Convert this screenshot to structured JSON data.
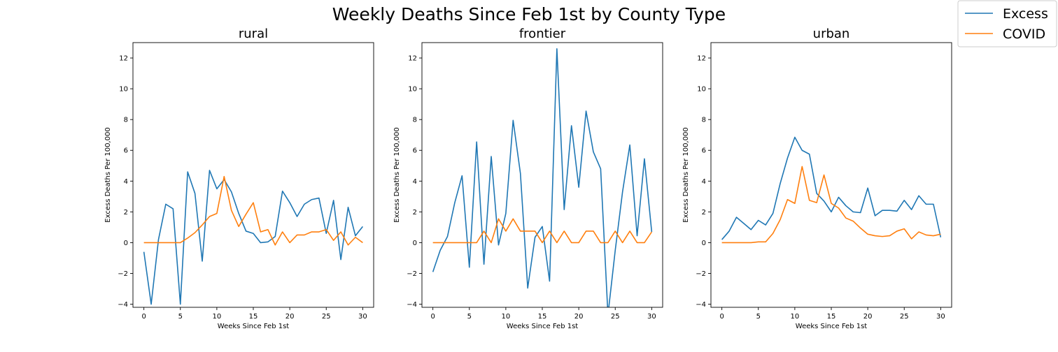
{
  "title": "Weekly Deaths Since Feb 1st by County Type",
  "legend": {
    "placement": "top-right",
    "entries": [
      "Excess",
      "COVID"
    ]
  },
  "colors": {
    "Excess": "#1f77b4",
    "COVID": "#ff7f0e"
  },
  "chart_data": [
    {
      "type": "line",
      "title": "rural",
      "xlabel": "Weeks Since Feb 1st",
      "ylabel": "Excess Deaths Per 100,000",
      "xlim": [
        -1.5,
        31.5
      ],
      "ylim": [
        -4.2,
        13
      ],
      "xticks": [
        "0",
        "5",
        "10",
        "15",
        "20",
        "25",
        "30"
      ],
      "yticks": [
        "−4",
        "−2",
        "0",
        "2",
        "4",
        "6",
        "8",
        "10",
        "12"
      ],
      "x": [
        0,
        1,
        2,
        3,
        4,
        5,
        6,
        7,
        8,
        9,
        10,
        11,
        12,
        13,
        14,
        15,
        16,
        17,
        18,
        19,
        20,
        21,
        22,
        23,
        24,
        25,
        26,
        27,
        28,
        29,
        30
      ],
      "series": [
        {
          "name": "Excess",
          "values": [
            -0.6,
            -4.0,
            0.2,
            2.5,
            2.2,
            -4.0,
            4.6,
            3.2,
            -1.2,
            4.7,
            3.5,
            4.1,
            3.3,
            1.9,
            0.75,
            0.6,
            0.0,
            0.05,
            0.4,
            3.35,
            2.6,
            1.7,
            2.5,
            2.8,
            2.9,
            0.6,
            2.75,
            -1.1,
            2.3,
            0.45,
            1.05
          ]
        },
        {
          "name": "COVID",
          "values": [
            0,
            0,
            0,
            0,
            0,
            0,
            0.3,
            0.65,
            1.15,
            1.7,
            1.9,
            4.3,
            2.1,
            1.05,
            1.85,
            2.6,
            0.7,
            0.85,
            -0.15,
            0.7,
            0.0,
            0.5,
            0.5,
            0.7,
            0.7,
            0.85,
            0.15,
            0.7,
            -0.15,
            0.35,
            0.0
          ]
        }
      ]
    },
    {
      "type": "line",
      "title": "frontier",
      "xlabel": "Weeks Since Feb 1st",
      "ylabel": "Excess Deaths Per 100,000",
      "xlim": [
        -1.5,
        31.5
      ],
      "ylim": [
        -4.2,
        13
      ],
      "xticks": [
        "0",
        "5",
        "10",
        "15",
        "20",
        "25",
        "30"
      ],
      "yticks": [
        "−4",
        "−2",
        "0",
        "2",
        "4",
        "6",
        "8",
        "10",
        "12"
      ],
      "x": [
        0,
        1,
        2,
        3,
        4,
        5,
        6,
        7,
        8,
        9,
        10,
        11,
        12,
        13,
        14,
        15,
        16,
        17,
        18,
        19,
        20,
        21,
        22,
        23,
        24,
        25,
        26,
        27,
        28,
        29,
        30
      ],
      "series": [
        {
          "name": "Excess",
          "values": [
            -1.9,
            -0.5,
            0.4,
            2.6,
            4.35,
            -1.6,
            6.55,
            -1.4,
            5.6,
            -0.15,
            1.9,
            7.95,
            4.5,
            -2.95,
            0.35,
            1.05,
            -2.5,
            12.6,
            2.15,
            7.6,
            3.6,
            8.55,
            5.9,
            4.8,
            -4.7,
            -0.5,
            3.3,
            6.35,
            0.45,
            5.45,
            0.7
          ]
        },
        {
          "name": "COVID",
          "values": [
            0,
            0,
            0,
            0,
            0,
            0,
            0,
            0.75,
            0,
            1.55,
            0.75,
            1.55,
            0.75,
            0.75,
            0.75,
            0,
            0.75,
            0,
            0.75,
            0,
            0,
            0.75,
            0.75,
            0,
            0,
            0.75,
            0,
            0.75,
            0,
            0,
            0.7
          ]
        }
      ]
    },
    {
      "type": "line",
      "title": "urban",
      "xlabel": "Weeks Since Feb 1st",
      "ylabel": "Excess Deaths Per 100,000",
      "xlim": [
        -1.5,
        31.5
      ],
      "ylim": [
        -4.2,
        13
      ],
      "xticks": [
        "0",
        "5",
        "10",
        "15",
        "20",
        "25",
        "30"
      ],
      "yticks": [
        "−4",
        "−2",
        "0",
        "2",
        "4",
        "6",
        "8",
        "10",
        "12"
      ],
      "x": [
        0,
        1,
        2,
        3,
        4,
        5,
        6,
        7,
        8,
        9,
        10,
        11,
        12,
        13,
        14,
        15,
        16,
        17,
        18,
        19,
        20,
        21,
        22,
        23,
        24,
        25,
        26,
        27,
        28,
        29,
        30
      ],
      "series": [
        {
          "name": "Excess",
          "values": [
            0.2,
            0.75,
            1.65,
            1.25,
            0.85,
            1.45,
            1.15,
            1.9,
            3.85,
            5.5,
            6.85,
            6.0,
            5.75,
            3.2,
            2.7,
            2.0,
            2.95,
            2.4,
            2.0,
            1.95,
            3.55,
            1.75,
            2.1,
            2.1,
            2.05,
            2.75,
            2.15,
            3.05,
            2.5,
            2.5,
            0.35
          ]
        },
        {
          "name": "COVID",
          "values": [
            0,
            0,
            0,
            0,
            0,
            0.05,
            0.05,
            0.6,
            1.5,
            2.8,
            2.55,
            4.95,
            2.75,
            2.6,
            4.4,
            2.55,
            2.25,
            1.6,
            1.4,
            0.95,
            0.55,
            0.45,
            0.4,
            0.45,
            0.75,
            0.9,
            0.25,
            0.7,
            0.5,
            0.45,
            0.55
          ]
        }
      ]
    }
  ]
}
